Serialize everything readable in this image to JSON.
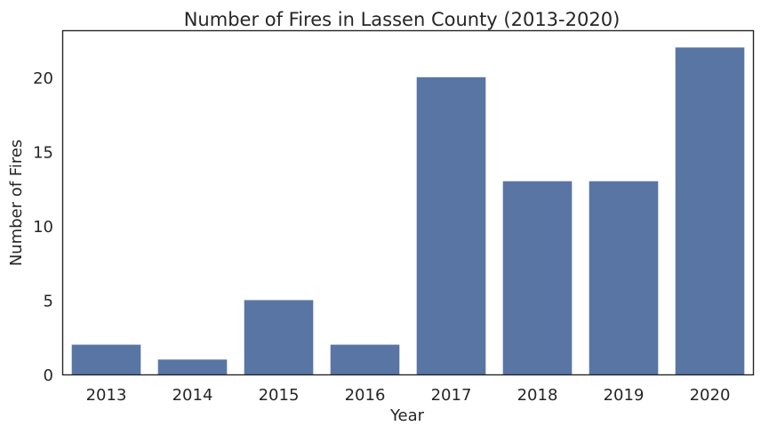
{
  "chart_data": {
    "type": "bar",
    "title": "Number of Fires in Lassen County (2013-2020)",
    "xlabel": "Year",
    "ylabel": "Number of Fires",
    "categories": [
      "2013",
      "2014",
      "2015",
      "2016",
      "2017",
      "2018",
      "2019",
      "2020"
    ],
    "values": [
      2,
      1,
      5,
      2,
      20,
      13,
      13,
      22
    ],
    "ylim": [
      0,
      23.1
    ],
    "yticks": [
      "0",
      "5",
      "10",
      "15",
      "20"
    ],
    "bar_color": "#5975a4",
    "grid": false,
    "legend": "none"
  }
}
